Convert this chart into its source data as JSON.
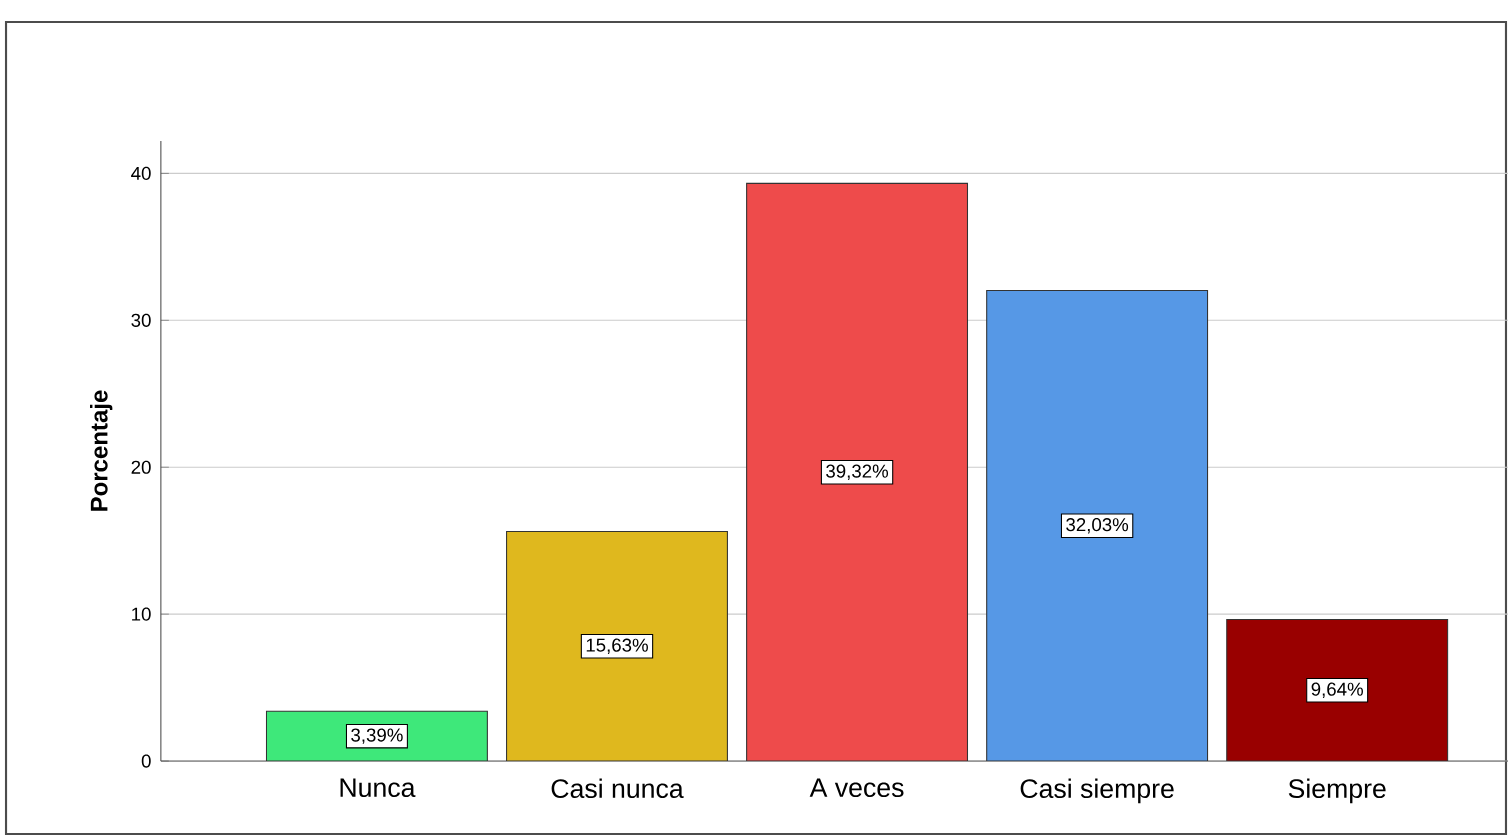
{
  "chart_data": {
    "type": "bar",
    "ylabel": "Porcentaje",
    "categories": [
      "Nunca",
      "Casi nunca",
      "A veces",
      "Casi siempre",
      "Siempre"
    ],
    "values": [
      3.39,
      15.63,
      39.32,
      32.03,
      9.64
    ],
    "colors": [
      "#3ee87a",
      "#dfb81e",
      "#ee4b4b",
      "#5698e6",
      "#990000"
    ],
    "value_labels": [
      "3,39%",
      "15,63%",
      "39,32%",
      "32,03%",
      "9,64%"
    ],
    "ylim": [
      0,
      42.2
    ],
    "yticks": [
      0,
      10,
      20,
      30,
      40
    ],
    "grid": "y"
  }
}
